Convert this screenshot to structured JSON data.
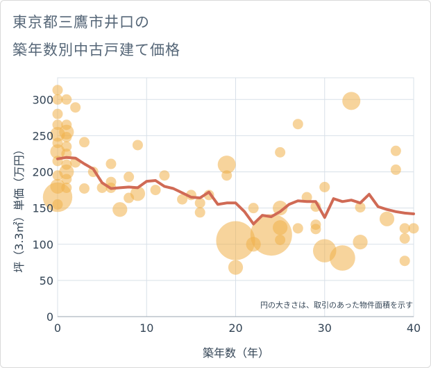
{
  "title_line1": "東京都三鷹市井口の",
  "title_line2": "築年数別中古戸建て価格",
  "chart_data": {
    "type": "scatter",
    "title": "東京都三鷹市井口の築年数別中古戸建て価格",
    "xlabel": "築年数（年）",
    "ylabel": "坪（3.3㎡）単価（万円）",
    "xlim": [
      0,
      40
    ],
    "ylim": [
      0,
      330
    ],
    "xticks": [
      "0",
      "10",
      "20",
      "30",
      "40"
    ],
    "yticks": [
      "0",
      "50",
      "100",
      "150",
      "200",
      "250",
      "300"
    ],
    "annotation": "円の大きさは、取引のあった物件面積を示す",
    "colors": {
      "bubble": "#f0b04a",
      "line": "#d06a55",
      "grid": "#d8e0e8"
    },
    "points": [
      {
        "x": 0,
        "y": 313,
        "s": 1
      },
      {
        "x": 0,
        "y": 300,
        "s": 1
      },
      {
        "x": 0,
        "y": 280,
        "s": 1
      },
      {
        "x": 0,
        "y": 265,
        "s": 1
      },
      {
        "x": 0,
        "y": 252,
        "s": 2
      },
      {
        "x": 0,
        "y": 240,
        "s": 1
      },
      {
        "x": 0,
        "y": 228,
        "s": 2
      },
      {
        "x": 0,
        "y": 215,
        "s": 1
      },
      {
        "x": 0,
        "y": 195,
        "s": 1
      },
      {
        "x": 0,
        "y": 180,
        "s": 2
      },
      {
        "x": 0,
        "y": 165,
        "s": 8
      },
      {
        "x": 0,
        "y": 155,
        "s": 1
      },
      {
        "x": 1,
        "y": 300,
        "s": 1
      },
      {
        "x": 1,
        "y": 265,
        "s": 1
      },
      {
        "x": 1,
        "y": 255,
        "s": 2
      },
      {
        "x": 1,
        "y": 248,
        "s": 1
      },
      {
        "x": 1,
        "y": 235,
        "s": 1
      },
      {
        "x": 1,
        "y": 225,
        "s": 1
      },
      {
        "x": 1,
        "y": 210,
        "s": 1
      },
      {
        "x": 1,
        "y": 200,
        "s": 2
      },
      {
        "x": 1,
        "y": 190,
        "s": 1
      },
      {
        "x": 1,
        "y": 178,
        "s": 1
      },
      {
        "x": 2,
        "y": 289,
        "s": 1
      },
      {
        "x": 2,
        "y": 213,
        "s": 1
      },
      {
        "x": 3,
        "y": 241,
        "s": 1
      },
      {
        "x": 3,
        "y": 177,
        "s": 1
      },
      {
        "x": 4,
        "y": 200,
        "s": 1
      },
      {
        "x": 5,
        "y": 178,
        "s": 1
      },
      {
        "x": 6,
        "y": 211,
        "s": 1
      },
      {
        "x": 6,
        "y": 186,
        "s": 1
      },
      {
        "x": 6,
        "y": 178,
        "s": 1
      },
      {
        "x": 7,
        "y": 148,
        "s": 2
      },
      {
        "x": 8,
        "y": 193,
        "s": 1
      },
      {
        "x": 8,
        "y": 164,
        "s": 1
      },
      {
        "x": 9,
        "y": 237,
        "s": 1
      },
      {
        "x": 9,
        "y": 170,
        "s": 2
      },
      {
        "x": 11,
        "y": 175,
        "s": 1
      },
      {
        "x": 12,
        "y": 195,
        "s": 1
      },
      {
        "x": 14,
        "y": 162,
        "s": 1
      },
      {
        "x": 15,
        "y": 168,
        "s": 1
      },
      {
        "x": 16,
        "y": 157,
        "s": 1
      },
      {
        "x": 16,
        "y": 144,
        "s": 1
      },
      {
        "x": 17,
        "y": 168,
        "s": 1
      },
      {
        "x": 19,
        "y": 210,
        "s": 3
      },
      {
        "x": 19,
        "y": 195,
        "s": 1
      },
      {
        "x": 20,
        "y": 105,
        "s": 14
      },
      {
        "x": 20,
        "y": 68,
        "s": 2
      },
      {
        "x": 22,
        "y": 150,
        "s": 1
      },
      {
        "x": 22,
        "y": 100,
        "s": 2
      },
      {
        "x": 24,
        "y": 113,
        "s": 16
      },
      {
        "x": 25,
        "y": 227,
        "s": 1
      },
      {
        "x": 25,
        "y": 150,
        "s": 2
      },
      {
        "x": 25,
        "y": 123,
        "s": 2
      },
      {
        "x": 25,
        "y": 106,
        "s": 1
      },
      {
        "x": 27,
        "y": 266,
        "s": 1
      },
      {
        "x": 27,
        "y": 122,
        "s": 1
      },
      {
        "x": 28,
        "y": 165,
        "s": 1
      },
      {
        "x": 29,
        "y": 152,
        "s": 1
      },
      {
        "x": 29,
        "y": 127,
        "s": 1
      },
      {
        "x": 29,
        "y": 121,
        "s": 1
      },
      {
        "x": 30,
        "y": 179,
        "s": 1
      },
      {
        "x": 30,
        "y": 91,
        "s": 5
      },
      {
        "x": 32,
        "y": 81,
        "s": 6
      },
      {
        "x": 33,
        "y": 298,
        "s": 3
      },
      {
        "x": 34,
        "y": 151,
        "s": 1
      },
      {
        "x": 34,
        "y": 103,
        "s": 2
      },
      {
        "x": 37,
        "y": 135,
        "s": 2
      },
      {
        "x": 38,
        "y": 229,
        "s": 1
      },
      {
        "x": 38,
        "y": 203,
        "s": 1
      },
      {
        "x": 39,
        "y": 122,
        "s": 1
      },
      {
        "x": 39,
        "y": 108,
        "s": 1
      },
      {
        "x": 39,
        "y": 77,
        "s": 1
      },
      {
        "x": 40,
        "y": 122,
        "s": 1
      }
    ],
    "trend_line": [
      {
        "x": 0,
        "y": 218
      },
      {
        "x": 1,
        "y": 220
      },
      {
        "x": 2,
        "y": 219
      },
      {
        "x": 3,
        "y": 211
      },
      {
        "x": 4,
        "y": 204
      },
      {
        "x": 5,
        "y": 185
      },
      {
        "x": 6,
        "y": 177
      },
      {
        "x": 7,
        "y": 178
      },
      {
        "x": 8,
        "y": 179
      },
      {
        "x": 9,
        "y": 178
      },
      {
        "x": 10,
        "y": 187
      },
      {
        "x": 11,
        "y": 188
      },
      {
        "x": 12,
        "y": 180
      },
      {
        "x": 13,
        "y": 177
      },
      {
        "x": 14,
        "y": 171
      },
      {
        "x": 15,
        "y": 165
      },
      {
        "x": 16,
        "y": 164
      },
      {
        "x": 17,
        "y": 172
      },
      {
        "x": 18,
        "y": 155
      },
      {
        "x": 19,
        "y": 157
      },
      {
        "x": 20,
        "y": 157
      },
      {
        "x": 21,
        "y": 145
      },
      {
        "x": 22,
        "y": 128
      },
      {
        "x": 23,
        "y": 140
      },
      {
        "x": 24,
        "y": 138
      },
      {
        "x": 25,
        "y": 145
      },
      {
        "x": 26,
        "y": 155
      },
      {
        "x": 27,
        "y": 160
      },
      {
        "x": 28,
        "y": 159
      },
      {
        "x": 29,
        "y": 159
      },
      {
        "x": 30,
        "y": 137
      },
      {
        "x": 31,
        "y": 163
      },
      {
        "x": 32,
        "y": 159
      },
      {
        "x": 33,
        "y": 161
      },
      {
        "x": 34,
        "y": 157
      },
      {
        "x": 35,
        "y": 169
      },
      {
        "x": 36,
        "y": 152
      },
      {
        "x": 37,
        "y": 148
      },
      {
        "x": 38,
        "y": 145
      },
      {
        "x": 39,
        "y": 143
      },
      {
        "x": 40,
        "y": 142
      }
    ]
  }
}
